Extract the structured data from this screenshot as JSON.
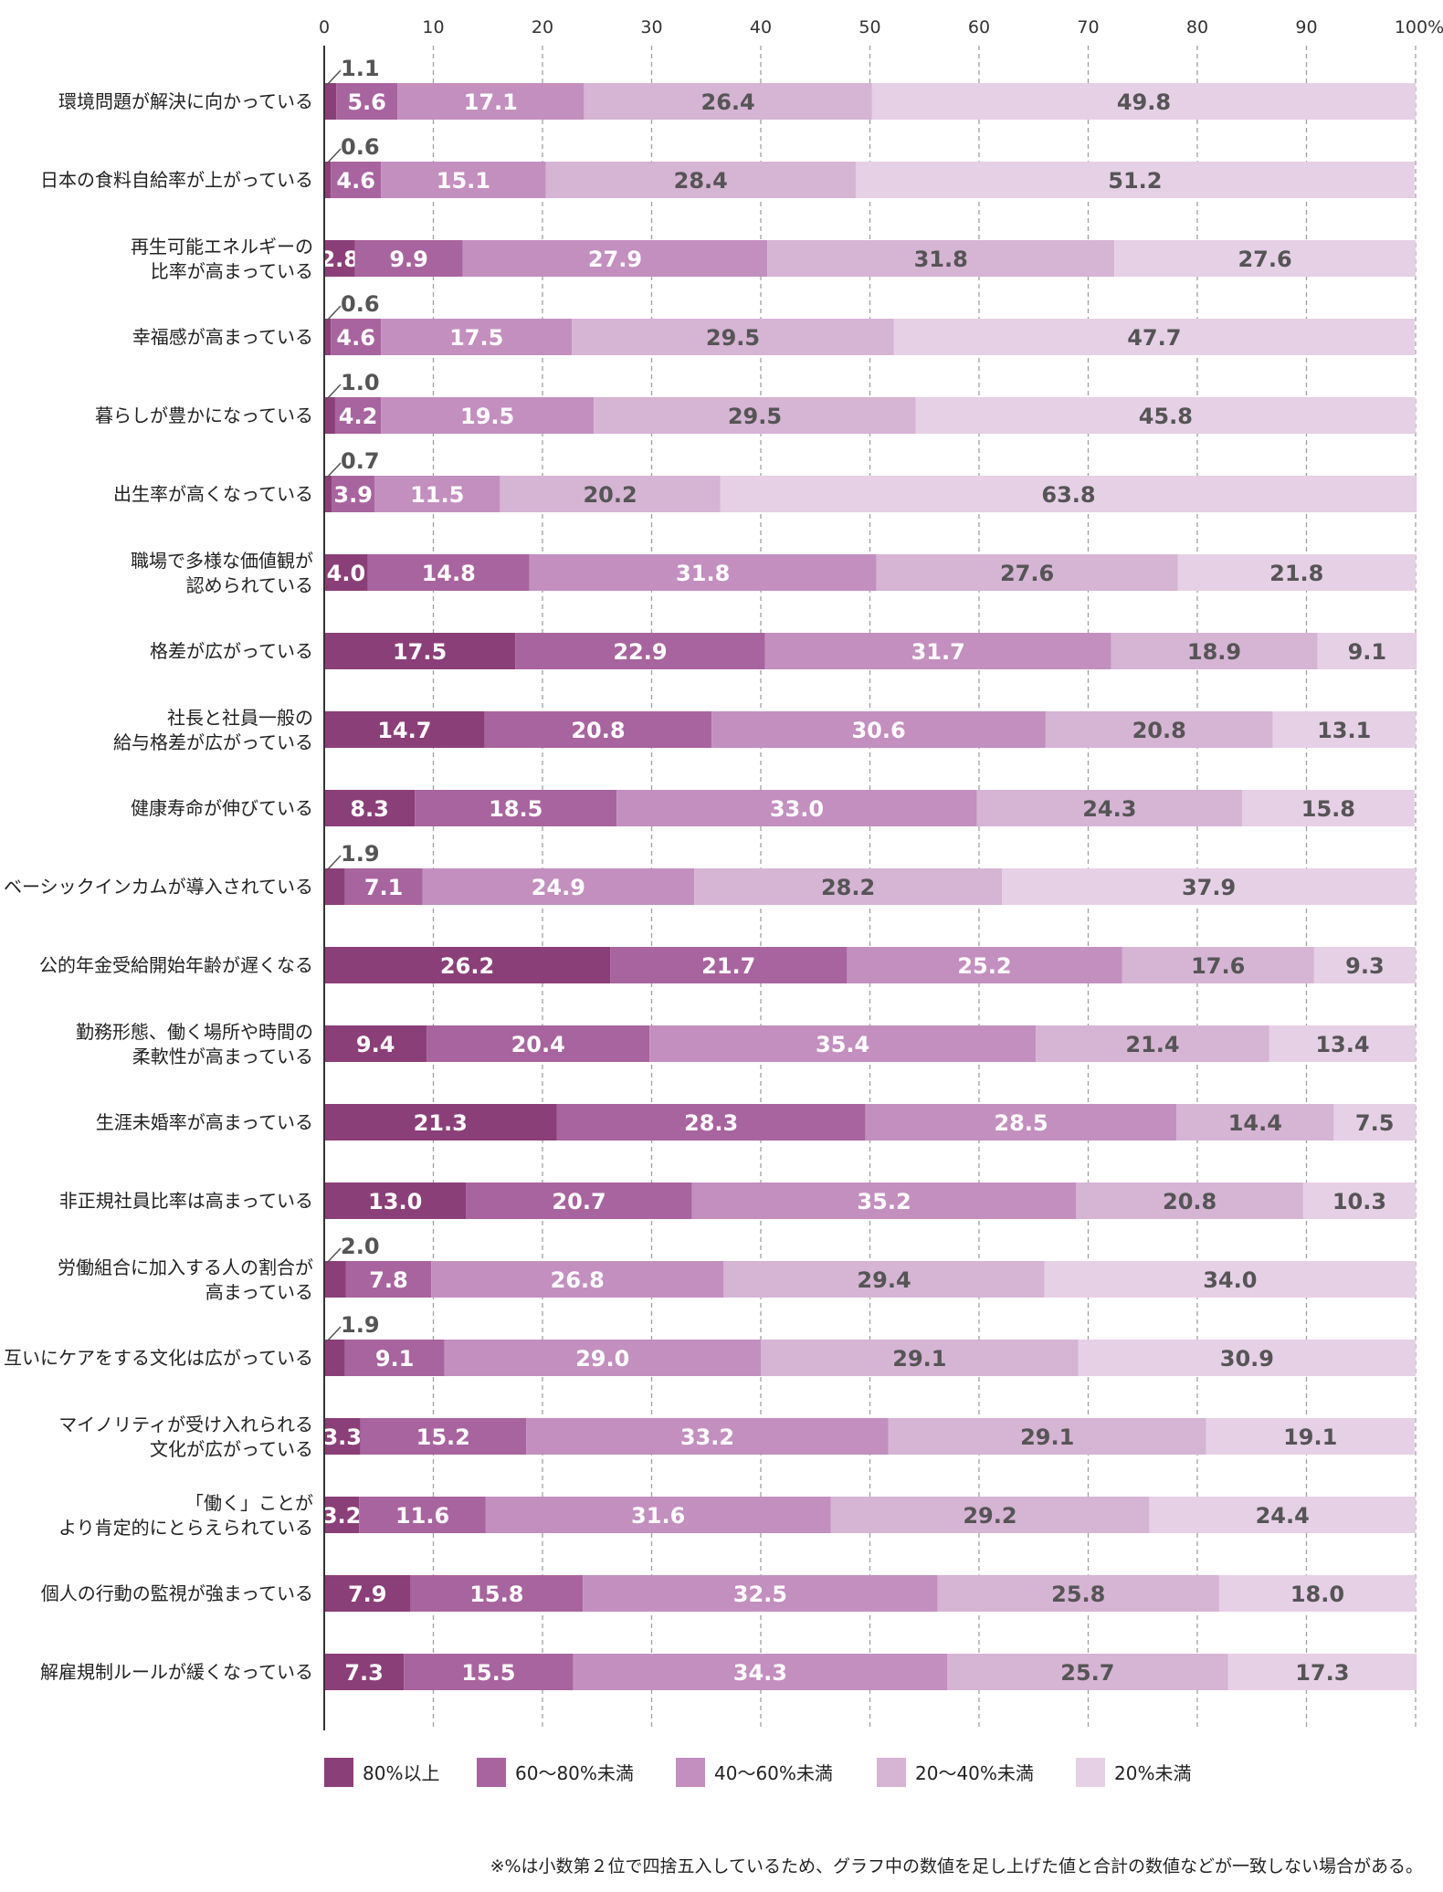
{
  "chart_data": {
    "type": "bar",
    "orientation": "horizontal",
    "stacked": true,
    "xlim": [
      0,
      100
    ],
    "x_ticks": [
      "0",
      "10",
      "20",
      "30",
      "40",
      "50",
      "60",
      "70",
      "80",
      "90",
      "100%"
    ],
    "grid": true,
    "legend_position": "bottom",
    "categories": [
      [
        "環境問題が解決に向かっている"
      ],
      [
        "日本の食料自給率が上がっている"
      ],
      [
        "再生可能エネルギーの",
        "比率が高まっている"
      ],
      [
        "幸福感が高まっている"
      ],
      [
        "暮らしが豊かになっている"
      ],
      [
        "出生率が高くなっている"
      ],
      [
        "職場で多様な価値観が",
        "認められている"
      ],
      [
        "格差が広がっている"
      ],
      [
        "社長と社員一般の",
        "給与格差が広がっている"
      ],
      [
        "健康寿命が伸びている"
      ],
      [
        "ベーシックインカムが導入されている"
      ],
      [
        "公的年金受給開始年齢が遅くなる"
      ],
      [
        "勤務形態、働く場所や時間の",
        "柔軟性が高まっている"
      ],
      [
        "生涯未婚率が高まっている"
      ],
      [
        "非正規社員比率は高まっている"
      ],
      [
        "労働組合に加入する人の割合が",
        "高まっている"
      ],
      [
        "互いにケアをする文化は広がっている"
      ],
      [
        "マイノリティが受け入れられる",
        "文化が広がっている"
      ],
      [
        "「働く」ことが",
        "より肯定的にとらえられている"
      ],
      [
        "個人の行動の監視が強まっている"
      ],
      [
        "解雇規制ルールが緩くなっている"
      ]
    ],
    "series": [
      {
        "name": "80%以上",
        "color": "#8b3f78",
        "label_color": "#ffffff",
        "values": [
          1.1,
          0.6,
          2.8,
          0.6,
          1.0,
          0.7,
          4.0,
          17.5,
          14.7,
          8.3,
          1.9,
          26.2,
          9.4,
          21.3,
          13.0,
          2.0,
          1.9,
          3.3,
          3.2,
          7.9,
          7.3
        ]
      },
      {
        "name": "60〜80%未満",
        "color": "#a8649e",
        "label_color": "#ffffff",
        "values": [
          5.6,
          4.6,
          9.9,
          4.6,
          4.2,
          3.9,
          14.8,
          22.9,
          20.8,
          18.5,
          7.1,
          21.7,
          20.4,
          28.3,
          20.7,
          7.8,
          9.1,
          15.2,
          11.6,
          15.8,
          15.5
        ]
      },
      {
        "name": "40〜60%未満",
        "color": "#c38fbf",
        "label_color": "#ffffff",
        "values": [
          17.1,
          15.1,
          27.9,
          17.5,
          19.5,
          11.5,
          31.8,
          31.7,
          30.6,
          33.0,
          24.9,
          25.2,
          35.4,
          28.5,
          35.2,
          26.8,
          29.0,
          33.2,
          31.6,
          32.5,
          34.3
        ]
      },
      {
        "name": "20〜40%未満",
        "color": "#d6b4d4",
        "label_color": "#555555",
        "values": [
          26.4,
          28.4,
          31.8,
          29.5,
          29.5,
          20.2,
          27.6,
          18.9,
          20.8,
          24.3,
          28.2,
          17.6,
          21.4,
          14.4,
          20.8,
          29.4,
          29.1,
          29.1,
          29.2,
          25.8,
          25.7
        ]
      },
      {
        "name": "20%未満",
        "color": "#e6d0e6",
        "label_color": "#555555",
        "values": [
          49.8,
          51.2,
          27.6,
          47.7,
          45.8,
          63.8,
          21.8,
          9.1,
          13.1,
          15.8,
          37.9,
          9.3,
          13.4,
          7.5,
          10.3,
          34.0,
          30.9,
          19.1,
          24.4,
          18.0,
          17.3
        ]
      }
    ]
  },
  "note": "※%は小数第２位で四捨五入しているため、グラフ中の数値を足し上げた値と合計の数値などが一致しない場合がある。"
}
